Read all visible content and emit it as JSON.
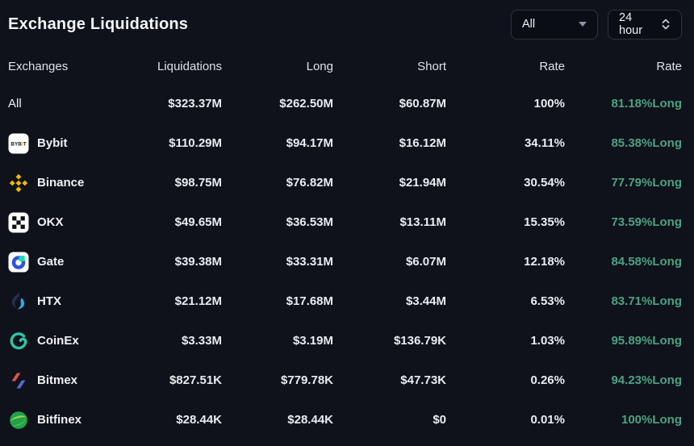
{
  "header": {
    "title": "Exchange Liquidations",
    "filter_dropdown": {
      "value": "All"
    },
    "time_dropdown": {
      "value": "24 hour"
    }
  },
  "table": {
    "columns": [
      "Exchanges",
      "Liquidations",
      "Long",
      "Short",
      "Rate",
      "Rate"
    ],
    "rows": [
      {
        "exchange": "All",
        "icon": null,
        "liquidations": "$323.37M",
        "long": "$262.50M",
        "short": "$60.87M",
        "rate": "100%",
        "long_rate": "81.18%Long"
      },
      {
        "exchange": "Bybit",
        "icon": "bybit",
        "liquidations": "$110.29M",
        "long": "$94.17M",
        "short": "$16.12M",
        "rate": "34.11%",
        "long_rate": "85.38%Long"
      },
      {
        "exchange": "Binance",
        "icon": "binance",
        "liquidations": "$98.75M",
        "long": "$76.82M",
        "short": "$21.94M",
        "rate": "30.54%",
        "long_rate": "77.79%Long"
      },
      {
        "exchange": "OKX",
        "icon": "okx",
        "liquidations": "$49.65M",
        "long": "$36.53M",
        "short": "$13.11M",
        "rate": "15.35%",
        "long_rate": "73.59%Long"
      },
      {
        "exchange": "Gate",
        "icon": "gate",
        "liquidations": "$39.38M",
        "long": "$33.31M",
        "short": "$6.07M",
        "rate": "12.18%",
        "long_rate": "84.58%Long"
      },
      {
        "exchange": "HTX",
        "icon": "htx",
        "liquidations": "$21.12M",
        "long": "$17.68M",
        "short": "$3.44M",
        "rate": "6.53%",
        "long_rate": "83.71%Long"
      },
      {
        "exchange": "CoinEx",
        "icon": "coinex",
        "liquidations": "$3.33M",
        "long": "$3.19M",
        "short": "$136.79K",
        "rate": "1.03%",
        "long_rate": "95.89%Long"
      },
      {
        "exchange": "Bitmex",
        "icon": "bitmex",
        "liquidations": "$827.51K",
        "long": "$779.78K",
        "short": "$47.73K",
        "rate": "0.26%",
        "long_rate": "94.23%Long"
      },
      {
        "exchange": "Bitfinex",
        "icon": "bitfinex",
        "liquidations": "$28.44K",
        "long": "$28.44K",
        "short": "$0",
        "rate": "0.01%",
        "long_rate": "100%Long"
      }
    ]
  },
  "colors": {
    "background": "#0f121a",
    "long_rate_green": "#4ea183",
    "binance_yellow": "#f0b90b",
    "dropdown_border": "#2c3342"
  }
}
